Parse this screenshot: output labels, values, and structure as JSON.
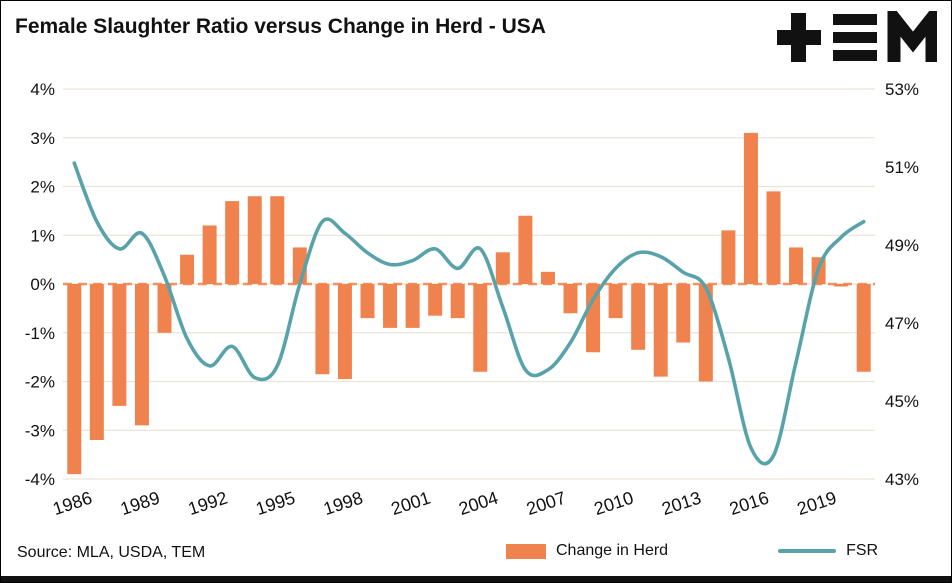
{
  "header": {
    "title": "Female Slaughter Ratio versus Change in Herd - USA",
    "logo_name": "TEM"
  },
  "footer": {
    "source": "Source: MLA, USDA, TEM",
    "legend": [
      {
        "label": "Change in Herd",
        "color": "#F0824E",
        "type": "bar"
      },
      {
        "label": "FSR",
        "color": "#58A3AA",
        "type": "line"
      }
    ]
  },
  "chart_data": {
    "type": "combo",
    "subtypes": [
      "bar",
      "line"
    ],
    "title": "Female Slaughter Ratio versus Change in Herd - USA",
    "x": [
      1986,
      1987,
      1988,
      1989,
      1990,
      1991,
      1992,
      1993,
      1994,
      1995,
      1996,
      1997,
      1998,
      1999,
      2000,
      2001,
      2002,
      2003,
      2004,
      2005,
      2006,
      2007,
      2008,
      2009,
      2010,
      2011,
      2012,
      2013,
      2014,
      2015,
      2016,
      2017,
      2018,
      2019,
      2020,
      2021
    ],
    "series": [
      {
        "name": "Change in Herd",
        "type": "bar",
        "axis": "left",
        "color": "#F0824E",
        "values": [
          -3.9,
          -3.2,
          -2.5,
          -2.9,
          -1.0,
          0.6,
          1.2,
          1.7,
          1.8,
          1.8,
          0.75,
          -1.85,
          -1.95,
          -0.7,
          -0.9,
          -0.9,
          -0.65,
          -0.7,
          -1.8,
          0.65,
          1.4,
          0.25,
          -0.6,
          -1.4,
          -0.7,
          -1.35,
          -1.9,
          -1.2,
          -2.0,
          1.1,
          3.1,
          1.9,
          0.75,
          0.55,
          -0.05,
          -1.8
        ]
      },
      {
        "name": "FSR",
        "type": "line",
        "axis": "right",
        "color": "#58A3AA",
        "values": [
          51.1,
          49.6,
          48.9,
          49.3,
          48.2,
          46.6,
          45.9,
          46.4,
          45.6,
          45.9,
          48.0,
          49.6,
          49.3,
          48.8,
          48.5,
          48.6,
          48.9,
          48.4,
          48.9,
          47.4,
          45.8,
          45.8,
          46.5,
          47.6,
          48.4,
          48.8,
          48.7,
          48.3,
          47.9,
          46.1,
          43.8,
          43.6,
          46.0,
          48.4,
          49.2,
          49.6
        ]
      }
    ],
    "left_axis": {
      "min": -4,
      "max": 4,
      "tick_values": [
        4,
        3,
        2,
        1,
        0,
        -1,
        -2,
        -3,
        -4
      ],
      "tick_labels": [
        "4%",
        "3%",
        "2%",
        "1%",
        "0%",
        "-1%",
        "-2%",
        "-3%",
        "-4%"
      ]
    },
    "right_axis": {
      "min": 43,
      "max": 53,
      "tick_values": [
        53,
        51,
        49,
        47,
        45,
        43
      ],
      "tick_labels": [
        "53%",
        "51%",
        "49%",
        "47%",
        "45%",
        "43%"
      ]
    },
    "x_tick_labels": [
      "1986",
      "1989",
      "1992",
      "1995",
      "1998",
      "2001",
      "2004",
      "2007",
      "2010",
      "2013",
      "2016",
      "2019"
    ],
    "grid": true,
    "grid_color": "#e9e4d9",
    "zero_line": {
      "style": "dashed",
      "color": "#F0824E"
    },
    "legend_position": "bottom",
    "text_color": "#111111"
  }
}
